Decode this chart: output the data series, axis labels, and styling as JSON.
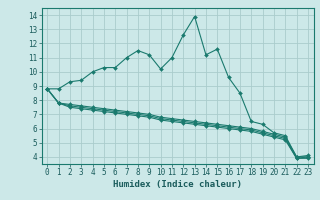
{
  "title": "",
  "xlabel": "Humidex (Indice chaleur)",
  "ylabel": "",
  "bg_color": "#cce8e8",
  "line_color": "#1a7a6e",
  "grid_color": "#aacccc",
  "xlim": [
    -0.5,
    23.5
  ],
  "ylim": [
    3.5,
    14.5
  ],
  "xticks": [
    0,
    1,
    2,
    3,
    4,
    5,
    6,
    7,
    8,
    9,
    10,
    11,
    12,
    13,
    14,
    15,
    16,
    17,
    18,
    19,
    20,
    21,
    22,
    23
  ],
  "yticks": [
    4,
    5,
    6,
    7,
    8,
    9,
    10,
    11,
    12,
    13,
    14
  ],
  "lines": [
    {
      "x": [
        0,
        1,
        2,
        3,
        4,
        5,
        6,
        7,
        8,
        9,
        10,
        11,
        12,
        13,
        14,
        15,
        16,
        17,
        18,
        19,
        20,
        21,
        22,
        23
      ],
      "y": [
        8.8,
        8.8,
        9.3,
        9.4,
        10.0,
        10.3,
        10.3,
        11.0,
        11.5,
        11.2,
        10.2,
        11.0,
        12.6,
        13.9,
        11.2,
        11.6,
        9.6,
        8.5,
        6.5,
        6.3,
        5.7,
        5.5,
        4.0,
        4.0
      ]
    },
    {
      "x": [
        0,
        1,
        2,
        3,
        4,
        5,
        6,
        7,
        8,
        9,
        10,
        11,
        12,
        13,
        14,
        15,
        16,
        17,
        18,
        19,
        20,
        21,
        22,
        23
      ],
      "y": [
        8.8,
        7.8,
        7.7,
        7.6,
        7.5,
        7.4,
        7.3,
        7.2,
        7.1,
        7.0,
        6.8,
        6.7,
        6.6,
        6.5,
        6.4,
        6.3,
        6.2,
        6.1,
        6.0,
        5.8,
        5.6,
        5.4,
        4.0,
        4.1
      ]
    },
    {
      "x": [
        0,
        1,
        2,
        3,
        4,
        5,
        6,
        7,
        8,
        9,
        10,
        11,
        12,
        13,
        14,
        15,
        16,
        17,
        18,
        19,
        20,
        21,
        22,
        23
      ],
      "y": [
        8.8,
        7.8,
        7.6,
        7.5,
        7.4,
        7.3,
        7.2,
        7.1,
        7.0,
        6.9,
        6.7,
        6.6,
        6.5,
        6.4,
        6.3,
        6.2,
        6.1,
        6.0,
        5.9,
        5.7,
        5.5,
        5.3,
        3.9,
        4.0
      ]
    },
    {
      "x": [
        0,
        1,
        2,
        3,
        4,
        5,
        6,
        7,
        8,
        9,
        10,
        11,
        12,
        13,
        14,
        15,
        16,
        17,
        18,
        19,
        20,
        21,
        22,
        23
      ],
      "y": [
        8.8,
        7.8,
        7.5,
        7.4,
        7.3,
        7.2,
        7.1,
        7.0,
        6.9,
        6.8,
        6.6,
        6.5,
        6.4,
        6.3,
        6.2,
        6.1,
        6.0,
        5.9,
        5.8,
        5.6,
        5.4,
        5.2,
        3.9,
        3.9
      ]
    }
  ],
  "font_family": "monospace",
  "tick_fontsize": 5.5,
  "xlabel_fontsize": 6.5,
  "tick_color": "#1a5c5c",
  "spine_color": "#1a7a6e"
}
